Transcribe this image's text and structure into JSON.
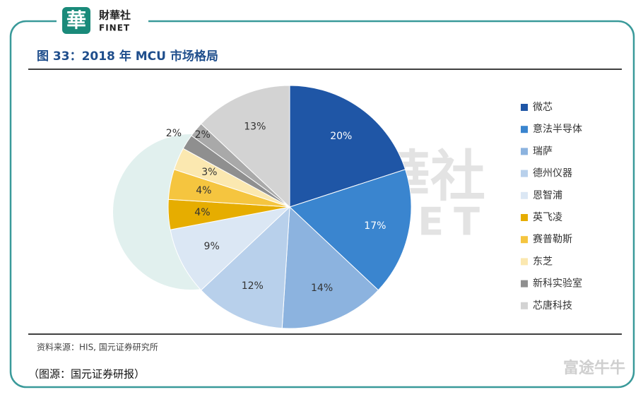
{
  "header": {
    "logo_mark": "華",
    "logo_name": "財華社",
    "logo_sub": "FINET"
  },
  "chart_data": {
    "type": "pie",
    "title": "图 33：2018 年 MCU 市场格局",
    "categories": [
      "微芯",
      "意法半导体",
      "瑞萨",
      "德州仪器",
      "恩智浦",
      "英飞凌",
      "赛普勒斯",
      "东芝",
      "新科实验室",
      null,
      "芯唐科技"
    ],
    "values": [
      20,
      17,
      14,
      12,
      9,
      4,
      4,
      3,
      2,
      2,
      13
    ],
    "value_labels": [
      "20%",
      "17%",
      "14%",
      "12%",
      "9%",
      "4%",
      "4%",
      "3%",
      "2%",
      "2%",
      "13%"
    ],
    "colors": [
      "#1f56a6",
      "#3a85cf",
      "#8cb3df",
      "#b8d0eb",
      "#dbe7f4",
      "#e6ad00",
      "#f5c53f",
      "#fbe8b0",
      "#8f8f8f",
      "#a9a9a9",
      "#d3d3d3"
    ],
    "legend": "right",
    "source": "资料来源：HIS, 国元证券研究所"
  },
  "caption": "（图源：国元证券研报）",
  "watermark": {
    "text": "財華社",
    "sub": "FINET",
    "corner": "富途牛牛"
  }
}
